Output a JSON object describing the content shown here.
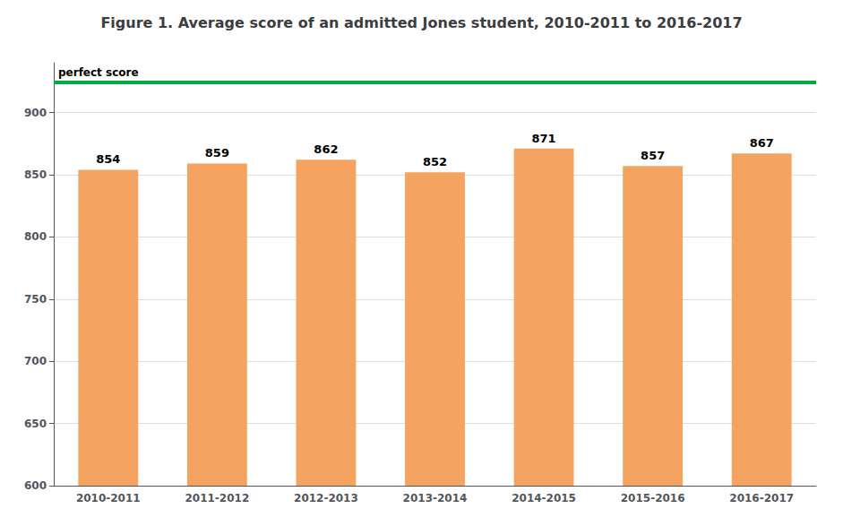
{
  "chart_data": {
    "type": "bar",
    "title": "Figure 1. Average score of an admitted Jones student, 2010-2011 to 2016-2017",
    "categories": [
      "2010-2011",
      "2011-2012",
      "2012-2013",
      "2013-2014",
      "2014-2015",
      "2015-2016",
      "2016-2017"
    ],
    "values": [
      854,
      859,
      862,
      852,
      871,
      857,
      867
    ],
    "color": "#F4A460",
    "ylim": [
      600,
      940
    ],
    "yticks": [
      600,
      650,
      700,
      750,
      800,
      850,
      900
    ],
    "grid": true,
    "data_labels": true,
    "annotations": [
      {
        "text": "perfect score",
        "y": 924,
        "color": "#00AA44"
      }
    ]
  }
}
